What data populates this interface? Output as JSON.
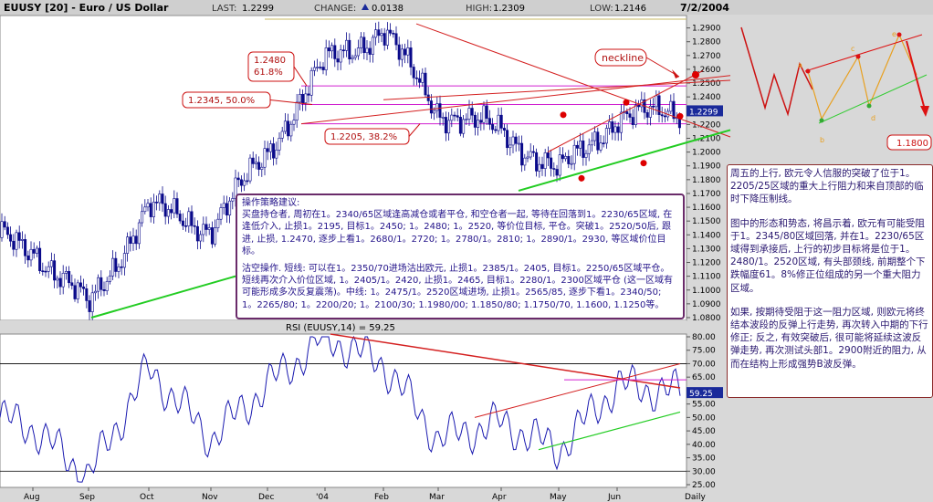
{
  "header": {
    "symbol": "EUUSY [20] - Euro / US Dollar",
    "last_label": "LAST:",
    "last_value": "1.2299",
    "change_label": "CHANGE:",
    "change_value": "0.0138",
    "high_label": "HIGH:",
    "high_value": "1.2309",
    "low_label": "LOW:",
    "low_value": "1.2146",
    "date": "7/2/2004"
  },
  "price_ticks": [
    "1.2900",
    "1.2800",
    "1.2700",
    "1.2600",
    "1.2500",
    "1.2400",
    "1.2300",
    "1.2200",
    "1.2100",
    "1.2000",
    "1.1900",
    "1.1800",
    "1.1700",
    "1.1600",
    "1.1500",
    "1.1400",
    "1.1300",
    "1.1200",
    "1.1100",
    "1.1000",
    "1.0900",
    "1.0800"
  ],
  "price_current": "1.2299",
  "rsi_title": "RSI (EUUSY,14) = 59.25",
  "rsi_ticks": [
    "80.00",
    "75.00",
    "70.00",
    "65.00",
    "60.00",
    "55.00",
    "50.00",
    "45.00",
    "40.00",
    "35.00",
    "30.00",
    "25.00"
  ],
  "rsi_current": "59.25",
  "x_months": [
    "Aug",
    "Sep",
    "Oct",
    "Nov",
    "Dec",
    "'04",
    "Feb",
    "Mar",
    "Apr",
    "May",
    "Jun",
    "Daily"
  ],
  "annotations": {
    "neckline": "neckline",
    "fib_618_price": "1.2480",
    "fib_618_pct": "61.8%",
    "fib_50": "1.2345,    50.0%",
    "fib_382": "1.2205,    38.2%",
    "target": "1.1800",
    "wave_labels": [
      "a",
      "b",
      "c",
      "d",
      "e"
    ]
  },
  "strategy": {
    "p1": "操作策略建议:",
    "p2": "买盘持仓者, 周初在1。2340/65区域逢高减仓或者平仓, 和空仓者一起, 等待在回落到1。2230/65区域, 在逢低介入, 止损1。2195, 目标1。2450; 1。2480; 1。2520, 等价位目标, 平仓。突破1。2520/50后, 跟进, 止损, 1.2470, 逐步上看1。2680/1。2720; 1。2780/1。2810; 1。2890/1。2930, 等区域价位目标。",
    "p3": "沽空操作. 短线: 可以在1。2350/70进场沽出欧元, 止损1。2385/1。2405, 目标1。2250/65区域平仓。短线再次介入价位区域, 1。2405/1。2420, 止损1。2465, 目标1。2280/1。2300区域平仓 (这一区域有可能形成多次反复震荡)。中线: 1。2475/1。2520区域进场, 止损1。2565/85, 逐步下看1。2340/50; 1。2265/80; 1。2200/20; 1。2100/30; 1.1980/00; 1.1850/80; 1.1750/70, 1.1600, 1.1250等。"
  },
  "commentary": {
    "p1": "周五的上行, 欧元令人信服的突破了位于1。2205/25区域的重大上行阻力和来自顶部的临时下降压制线。",
    "p2": "图中的形态和势态, 将昌示着, 欧元有可能受阻于1。2345/80区域回落, 并在1。2230/65区域得到承接后, 上行的初步目标将是位于1。2480/1。2520区域, 有头部颈线, 前期整个下跌幅度61。8%修正位组成的另一个重大阻力区域。",
    "p3": "如果, 按期待受阻于这一阻力区域, 则欧元将终结本波段的反弹上行走势, 再次转入中期的下行修正; 反之, 有效突破后, 很可能将延续这波反弹走势, 再次测试头部1。2900附近的阻力, 从而在结构上形成强势B波反弹。"
  },
  "chart_data": [
    {
      "type": "candlestick",
      "title": "EUUSY [20] - Euro / US Dollar",
      "series": [
        {
          "name": "EUUSY",
          "x": [
            "Aug",
            "Sep",
            "Oct",
            "Nov",
            "Dec",
            "'04",
            "Feb",
            "Mar",
            "Apr",
            "May",
            "Jun"
          ],
          "close": [
            1.13,
            1.095,
            1.16,
            1.165,
            1.2,
            1.258,
            1.285,
            1.225,
            1.21,
            1.195,
            1.215
          ],
          "last": 1.2299
        }
      ],
      "ylim": [
        1.078,
        1.299
      ],
      "levels": [
        {
          "value": 1.248,
          "label": "61.8%"
        },
        {
          "value": 1.2345,
          "label": "50.0%"
        },
        {
          "value": 1.2205,
          "label": "38.2%"
        }
      ],
      "target": 1.18
    },
    {
      "type": "line",
      "title": "RSI (EUUSY,14) = 59.25",
      "series": [
        {
          "name": "RSI",
          "x": [
            "Aug",
            "Sep",
            "Oct",
            "Nov",
            "Dec",
            "'04",
            "Feb",
            "Mar",
            "Apr",
            "May",
            "Jun"
          ],
          "values": [
            50,
            26,
            68,
            40,
            62,
            80,
            70,
            42,
            48,
            38,
            62
          ],
          "last": 59.25
        }
      ],
      "ylim": [
        25,
        80
      ],
      "reference_lines": [
        70,
        30
      ]
    }
  ],
  "colors": {
    "bull": "#0a0a8a",
    "bear": "#0a0a8a",
    "rsi_line": "#1a1ab0",
    "trend_red": "#d42020",
    "trend_green": "#20c020",
    "fib_magenta": "#d020d0",
    "panel_bg": "#ffffff",
    "header_bg": "#c8c8c8",
    "annotation_red": "#c02020"
  }
}
